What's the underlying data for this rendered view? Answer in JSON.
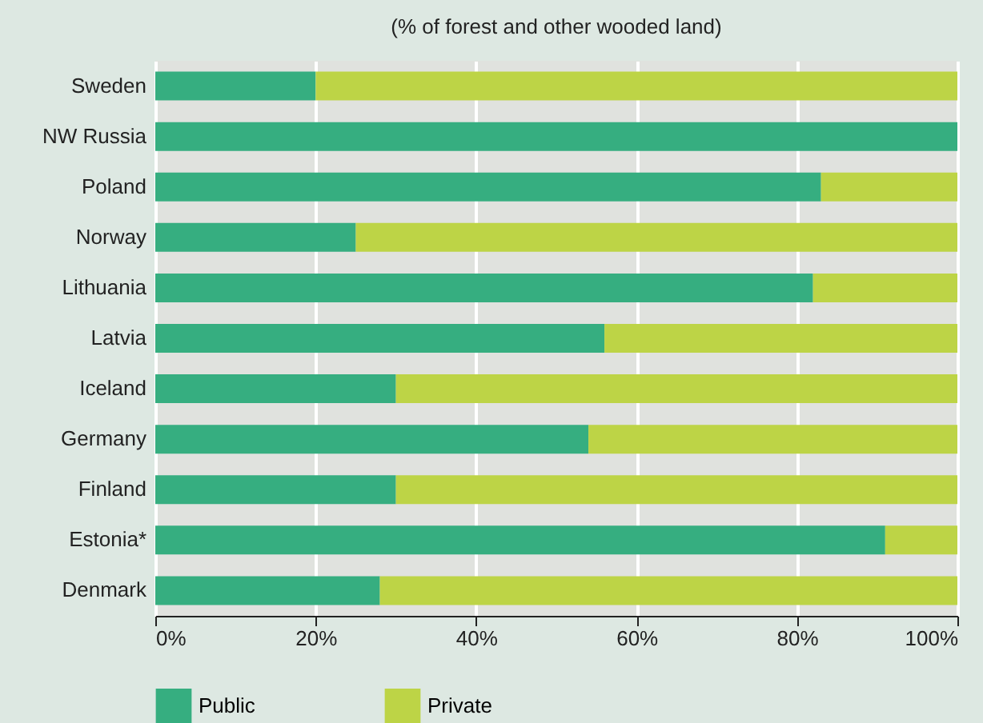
{
  "chart_data": {
    "type": "bar",
    "orientation": "horizontal",
    "stacked": true,
    "title": "(% of forest and other wooded land)",
    "categories": [
      "Sweden",
      "NW Russia",
      "Poland",
      "Norway",
      "Lithuania",
      "Latvia",
      "Iceland",
      "Germany",
      "Finland",
      "Estonia*",
      "Denmark"
    ],
    "series": [
      {
        "name": "Public",
        "color": "#36ae80",
        "values": [
          20,
          100,
          83,
          25,
          82,
          56,
          30,
          54,
          30,
          91,
          28
        ]
      },
      {
        "name": "Private",
        "color": "#bdd446",
        "values": [
          80,
          0,
          17,
          75,
          18,
          44,
          70,
          46,
          70,
          9,
          72
        ]
      }
    ],
    "xlim": [
      0,
      100
    ],
    "xticks": [
      {
        "value": 0,
        "label": "0%"
      },
      {
        "value": 20,
        "label": "20%"
      },
      {
        "value": 40,
        "label": "40%"
      },
      {
        "value": 60,
        "label": "60%"
      },
      {
        "value": 80,
        "label": "80%"
      },
      {
        "value": 100,
        "label": "100%"
      }
    ],
    "grid": "x",
    "legend": "bottom"
  }
}
